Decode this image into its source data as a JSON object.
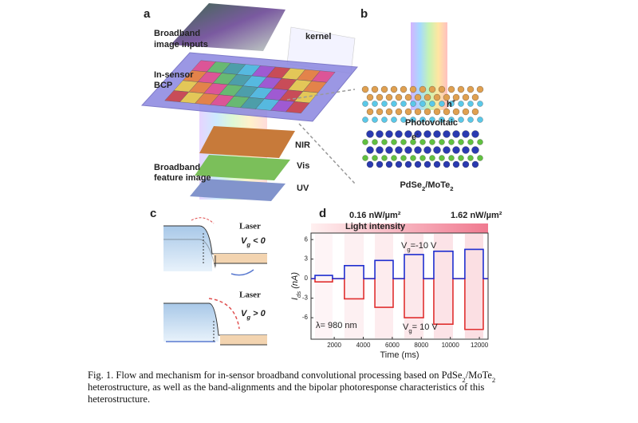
{
  "figure": {
    "panels": {
      "a": {
        "label": "a",
        "inputs": [
          "Broadband",
          "image inputs"
        ],
        "kernel": "kernel",
        "bcp": [
          "In-sensor",
          "BCP"
        ],
        "bands": [
          "NIR",
          "Vis",
          "UV"
        ],
        "feature": [
          "Broadband",
          "feature image"
        ]
      },
      "b": {
        "label": "b",
        "hole": {
          "main": "h",
          "sup": "+"
        },
        "effect": "Photovoltaic",
        "electron": {
          "main": "e",
          "sup": "-"
        },
        "material": [
          "PdSe",
          "2",
          "/MoTe",
          "2"
        ]
      },
      "c": {
        "label": "c",
        "laser_top": "Laser",
        "vg_neg": {
          "main": "V",
          "sub": "g",
          "rest": " < 0"
        },
        "laser_bottom": "Laser",
        "vg_pos": {
          "main": "V",
          "sub": "g",
          "rest": " > 0"
        }
      },
      "d": {
        "label": "d"
      }
    },
    "caption": [
      [
        "Fig. 1. Flow and mechanism for in-sensor broadband convolutional processing based on PdSe",
        "2",
        "/MoTe",
        "2"
      ],
      [
        "heterostructure, as well as the band-alignments and the bipolar photoresponse characteristics of this"
      ],
      [
        "heterostructure."
      ]
    ]
  },
  "chart_data": {
    "type": "line",
    "xlabel": "Time (ms)",
    "ylabel": {
      "main": "I",
      "sub": "ds",
      "rest": " (nA)"
    },
    "light_intensity": "Light intensity",
    "intensity_labels": [
      "0.16 nW/µm²",
      "1.62 nW/µm²"
    ],
    "annotations": [
      {
        "main": "V",
        "sub": "g",
        "rest": "=-10 V"
      },
      {
        "main": "V",
        "sub": "g",
        "rest": "= 10 V"
      },
      "λ= 980 nm"
    ],
    "x": [
      400,
      675,
      675,
      1880,
      1880,
      2700,
      2700,
      4030,
      4030,
      4800,
      4800,
      6060,
      6060,
      6830,
      6830,
      8150,
      8150,
      8860,
      8860,
      10180,
      10180,
      11000,
      11000,
      12270,
      12270,
      12600
    ],
    "series": [
      {
        "color": "#1f2fd0",
        "values": [
          0,
          0,
          0.5,
          0.5,
          0,
          0,
          2,
          2,
          0,
          0,
          2.8,
          2.8,
          0,
          0,
          3.7,
          3.7,
          0,
          0,
          4.2,
          4.2,
          0,
          0,
          4.5,
          4.5,
          0,
          0
        ]
      },
      {
        "color": "#e03030",
        "values": [
          0,
          0,
          -0.5,
          -0.5,
          0,
          0,
          -3.1,
          -3.1,
          0,
          0,
          -4.4,
          -4.4,
          0,
          0,
          -6,
          -6,
          0,
          0,
          -7,
          -7,
          0,
          0,
          -7.8,
          -7.8,
          0,
          0
        ]
      }
    ],
    "xlim": [
      400,
      12600
    ],
    "ylim": [
      -9.3,
      7
    ],
    "xticks": [
      2000,
      4000,
      6000,
      8000,
      10000,
      12000
    ],
    "yticks": [
      -6,
      -3,
      0,
      3,
      6
    ]
  }
}
